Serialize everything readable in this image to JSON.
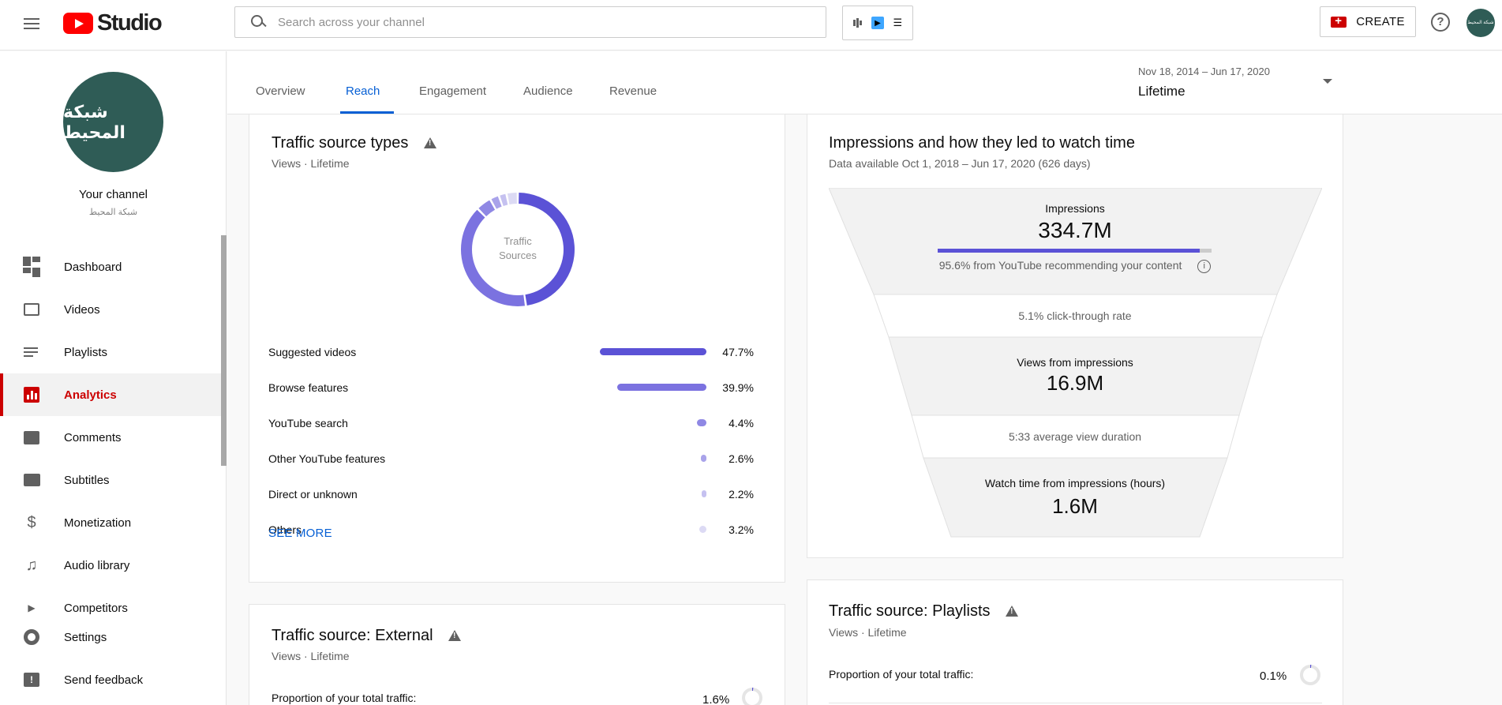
{
  "app": {
    "logo_text": "Studio",
    "search_placeholder": "Search across your channel",
    "create_label": "CREATE",
    "help_label": "?"
  },
  "channel": {
    "avatar_text": "شبكة المحيط",
    "title": "Your channel",
    "subtitle": "شبكة المحيط"
  },
  "sidebar": {
    "items": [
      {
        "label": "Dashboard",
        "icon": "dashboard-icon"
      },
      {
        "label": "Videos",
        "icon": "videos-icon"
      },
      {
        "label": "Playlists",
        "icon": "playlists-icon"
      },
      {
        "label": "Analytics",
        "icon": "analytics-icon",
        "active": true
      },
      {
        "label": "Comments",
        "icon": "comments-icon"
      },
      {
        "label": "Subtitles",
        "icon": "subtitles-icon"
      },
      {
        "label": "Monetization",
        "icon": "dollar-icon"
      },
      {
        "label": "Audio library",
        "icon": "audio-library-icon"
      },
      {
        "label": "Competitors",
        "icon": "vidiq-icon"
      }
    ],
    "bottom": [
      {
        "label": "Settings",
        "icon": "gear-icon"
      },
      {
        "label": "Send feedback",
        "icon": "feedback-icon"
      }
    ]
  },
  "tabs": [
    "Overview",
    "Reach",
    "Engagement",
    "Audience",
    "Revenue"
  ],
  "active_tab": "Reach",
  "date_range": {
    "range": "Nov 18, 2014 – Jun 17, 2020",
    "value": "Lifetime"
  },
  "traffic_sources": {
    "title": "Traffic source types",
    "subtitle": "Views · Lifetime",
    "donut_label_1": "Traffic",
    "donut_label_2": "Sources",
    "rows": [
      {
        "label": "Suggested videos",
        "pct": "47.7%",
        "value": 47.7,
        "color": "#5b52d6"
      },
      {
        "label": "Browse features",
        "pct": "39.9%",
        "value": 39.9,
        "color": "#7b72e0"
      },
      {
        "label": "YouTube search",
        "pct": "4.4%",
        "value": 4.4,
        "color": "#8f88e4"
      },
      {
        "label": "Other YouTube features",
        "pct": "2.6%",
        "value": 2.6,
        "color": "#a9a3ea"
      },
      {
        "label": "Direct or unknown",
        "pct": "2.2%",
        "value": 2.2,
        "color": "#c5c1f0"
      },
      {
        "label": "Others",
        "pct": "3.2%",
        "value": 3.2,
        "color": "#dcdaf4"
      }
    ],
    "see_more": "SEE MORE"
  },
  "impressions": {
    "title": "Impressions and how they led to watch time",
    "subtitle": "Data available Oct 1, 2018 – Jun 17, 2020 (626 days)",
    "impressions_label": "Impressions",
    "impressions_value": "334.7M",
    "recommend_text": "95.6% from YouTube recommending your content",
    "recommend_fraction": 0.956,
    "ctr_text": "5.1% click-through rate",
    "views_label": "Views from impressions",
    "views_value": "16.9M",
    "avd_text": "5:33 average view duration",
    "watch_label": "Watch time from impressions (hours)",
    "watch_value": "1.6M"
  },
  "external": {
    "title": "Traffic source: External",
    "subtitle": "Views · Lifetime",
    "prop_label": "Proportion of your total traffic:",
    "prop_value": "1.6%",
    "prop_fraction": 0.016
  },
  "playlists": {
    "title": "Traffic source: Playlists",
    "subtitle": "Views · Lifetime",
    "prop_label": "Proportion of your total traffic:",
    "prop_value": "0.1%",
    "prop_fraction": 0.001
  },
  "colors": {
    "accent": "#065fd4",
    "brand_red": "#cc0000",
    "chart_primary": "#5b52d6"
  }
}
